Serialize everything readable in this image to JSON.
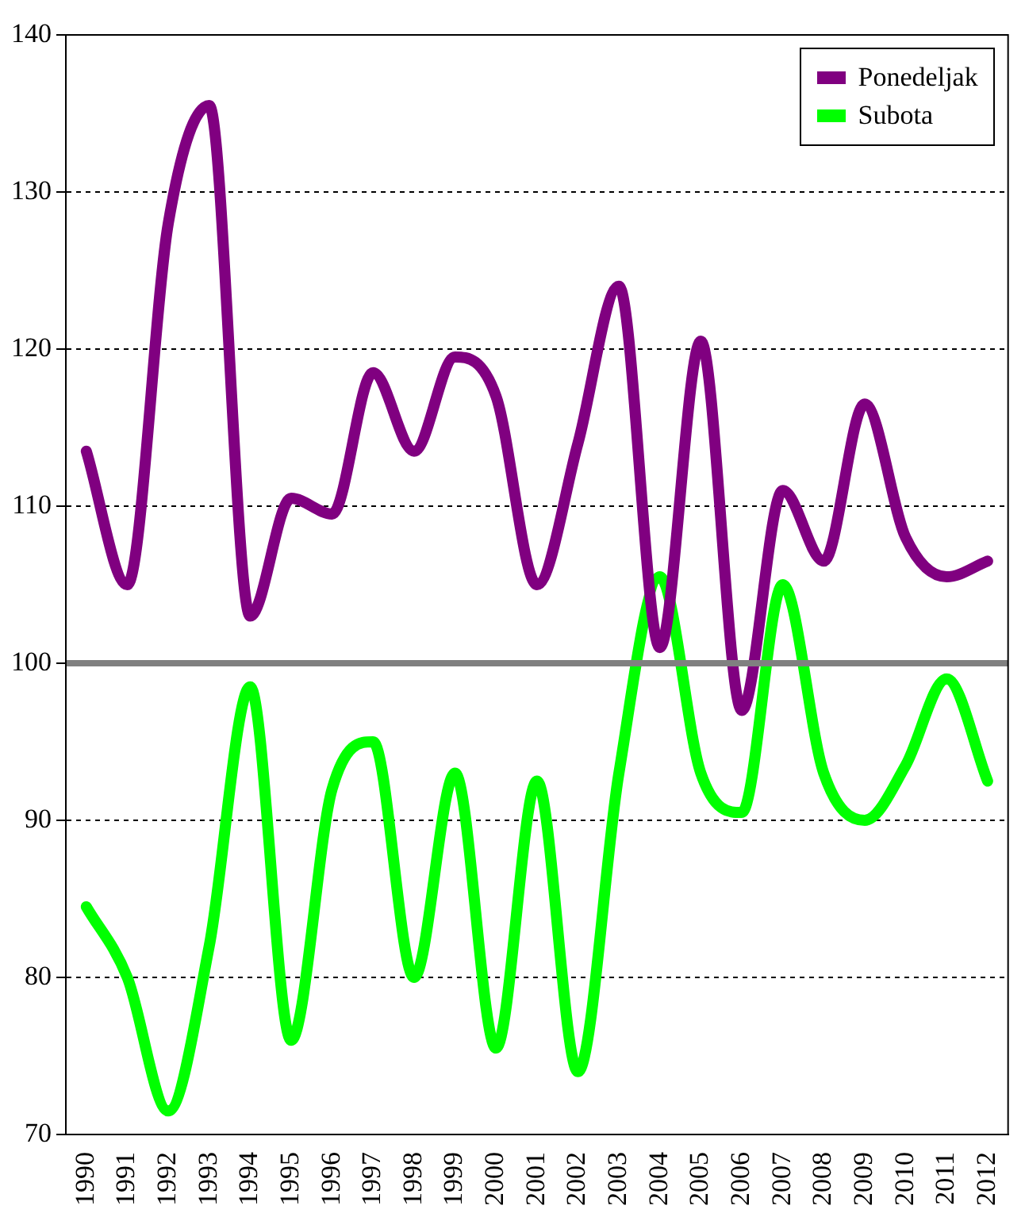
{
  "chart_data": {
    "type": "line",
    "categories": [
      "1990",
      "1991",
      "1992",
      "1993",
      "1994",
      "1995",
      "1996",
      "1997",
      "1998",
      "1999",
      "2000",
      "2001",
      "2002",
      "2003",
      "2004",
      "2005",
      "2006",
      "2007",
      "2008",
      "2009",
      "2010",
      "2011",
      "2012"
    ],
    "series": [
      {
        "name": "Ponedeljak",
        "color": "#800080",
        "values": [
          113.5,
          105,
          128,
          135.5,
          103,
          110.5,
          109.5,
          118.5,
          113.5,
          119.5,
          117,
          105,
          114,
          124,
          101,
          120.5,
          97,
          111,
          106.5,
          116.5,
          108,
          105.5,
          106.5
        ]
      },
      {
        "name": "Subota",
        "color": "#00ff00",
        "values": [
          84.5,
          80,
          71.5,
          82,
          98.5,
          76,
          92,
          95,
          80,
          93,
          75.5,
          92.5,
          74,
          93,
          105.5,
          93,
          90.5,
          105,
          93,
          90,
          93.5,
          99,
          92.5
        ]
      }
    ],
    "ylim": [
      70,
      140
    ],
    "yticks": [
      70,
      80,
      90,
      100,
      110,
      120,
      130,
      140
    ],
    "grid": "y",
    "legend": "top right",
    "marker": "none",
    "line_style": "solid",
    "ref_lines": [
      {
        "axis": "y",
        "value": 100,
        "color": "#808080"
      }
    ]
  }
}
